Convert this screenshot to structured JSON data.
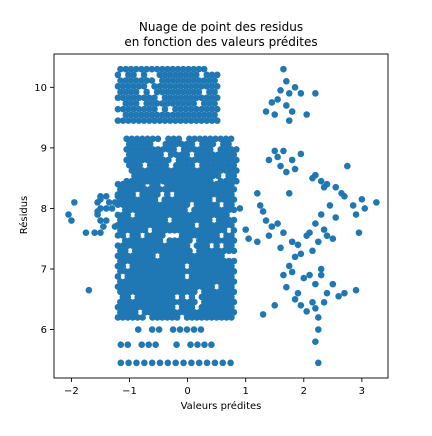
{
  "chart_data": {
    "type": "scatter",
    "title_lines": [
      "Nuage de point des residus",
      "en fonction des valeurs prédites"
    ],
    "xlabel": "Valeurs prédites",
    "ylabel": "Résidus",
    "xlim": [
      -2.3,
      3.45
    ],
    "ylim": [
      5.2,
      10.55
    ],
    "xticks": [
      -2,
      -1,
      0,
      1,
      2,
      3
    ],
    "yticks": [
      6,
      7,
      8,
      9,
      10
    ],
    "grid": false,
    "marker_color": "#1f77b4",
    "spine_color": "#000000",
    "background": "#ffffff",
    "clusters": [
      {
        "y_min": 9.45,
        "y_max": 10.3,
        "levels": 10,
        "x_min": -1.2,
        "x_max": 0.55,
        "x_step": 0.09,
        "gaps": 0.13
      },
      {
        "y_min": 8.45,
        "y_max": 9.15,
        "levels": 9,
        "x_min": -1.05,
        "x_max": 0.85,
        "x_step": 0.09,
        "gaps": 0.1
      },
      {
        "y_min": 6.2,
        "y_max": 8.4,
        "levels": 27,
        "x_min": -1.2,
        "x_max": 0.8,
        "x_step": 0.085,
        "gaps": 0.07
      },
      {
        "y_min": 7.6,
        "y_max": 8.3,
        "levels": 8,
        "x_min": -1.6,
        "x_max": -1.2,
        "x_step": 0.1,
        "gaps": 0.4
      },
      {
        "y_min": 5.75,
        "y_max": 6.0,
        "levels": 2,
        "x_min": -1.15,
        "x_max": 0.75,
        "x_step": 0.12,
        "gaps": 0.45
      },
      {
        "y_min": 5.45,
        "y_max": 5.45,
        "levels": 1,
        "x_min": -1.15,
        "x_max": 0.8,
        "x_step": 0.135,
        "gaps": 0.0
      }
    ],
    "points": [
      [
        -2.05,
        7.9
      ],
      [
        -2.0,
        7.8
      ],
      [
        -1.95,
        8.1
      ],
      [
        -1.75,
        7.6
      ],
      [
        -1.7,
        6.65
      ],
      [
        -1.55,
        7.95
      ],
      [
        -1.5,
        8.15
      ],
      [
        1.35,
        9.6
      ],
      [
        1.45,
        9.75
      ],
      [
        1.5,
        9.55
      ],
      [
        1.55,
        9.8
      ],
      [
        1.6,
        9.95
      ],
      [
        1.65,
        10.3
      ],
      [
        1.7,
        9.7
      ],
      [
        1.75,
        9.9
      ],
      [
        1.75,
        9.45
      ],
      [
        1.8,
        9.6
      ],
      [
        1.85,
        10.0
      ],
      [
        1.7,
        10.1
      ],
      [
        1.95,
        9.9
      ],
      [
        2.05,
        9.55
      ],
      [
        2.2,
        9.9
      ],
      [
        1.5,
        8.95
      ],
      [
        1.4,
        8.8
      ],
      [
        1.55,
        8.85
      ],
      [
        1.6,
        8.7
      ],
      [
        1.65,
        8.95
      ],
      [
        1.8,
        8.8
      ],
      [
        1.85,
        8.65
      ],
      [
        1.95,
        8.9
      ],
      [
        1.7,
        8.6
      ],
      [
        1.75,
        8.25
      ],
      [
        2.15,
        8.5
      ],
      [
        2.2,
        8.55
      ],
      [
        2.3,
        8.45
      ],
      [
        2.35,
        8.35
      ],
      [
        2.4,
        8.4
      ],
      [
        2.55,
        8.35
      ],
      [
        2.65,
        8.25
      ],
      [
        2.75,
        8.7
      ],
      [
        2.7,
        8.2
      ],
      [
        2.85,
        8.05
      ],
      [
        2.9,
        7.9
      ],
      [
        3.0,
        8.15
      ],
      [
        3.05,
        8.0
      ],
      [
        3.25,
        8.1
      ],
      [
        2.95,
        7.6
      ],
      [
        1.2,
        8.25
      ],
      [
        1.25,
        8.05
      ],
      [
        1.3,
        7.95
      ],
      [
        1.35,
        7.8
      ],
      [
        1.4,
        7.55
      ],
      [
        1.45,
        7.7
      ],
      [
        1.2,
        7.45
      ],
      [
        1.05,
        7.5
      ],
      [
        1.0,
        7.65
      ],
      [
        0.9,
        8.0
      ],
      [
        1.55,
        7.75
      ],
      [
        1.6,
        7.35
      ],
      [
        1.65,
        7.6
      ],
      [
        1.75,
        7.05
      ],
      [
        1.8,
        7.45
      ],
      [
        1.85,
        7.2
      ],
      [
        1.9,
        7.4
      ],
      [
        1.95,
        7.25
      ],
      [
        2.05,
        7.55
      ],
      [
        2.1,
        7.6
      ],
      [
        2.15,
        7.3
      ],
      [
        2.2,
        7.75
      ],
      [
        2.25,
        7.45
      ],
      [
        2.3,
        7.9
      ],
      [
        2.35,
        7.65
      ],
      [
        2.4,
        7.55
      ],
      [
        2.45,
        8.05
      ],
      [
        2.5,
        7.5
      ],
      [
        2.55,
        7.85
      ],
      [
        2.3,
        7.0
      ],
      [
        1.65,
        6.9
      ],
      [
        1.7,
        6.7
      ],
      [
        1.8,
        6.95
      ],
      [
        1.9,
        6.6
      ],
      [
        2.0,
        6.85
      ],
      [
        2.1,
        6.9
      ],
      [
        2.2,
        6.75
      ],
      [
        2.3,
        6.9
      ],
      [
        2.4,
        6.6
      ],
      [
        2.5,
        6.75
      ],
      [
        2.6,
        6.55
      ],
      [
        2.7,
        6.6
      ],
      [
        1.85,
        6.5
      ],
      [
        1.95,
        6.4
      ],
      [
        2.05,
        6.3
      ],
      [
        2.15,
        6.45
      ],
      [
        2.2,
        6.35
      ],
      [
        2.35,
        6.45
      ],
      [
        2.9,
        6.65
      ],
      [
        2.25,
        6.2
      ],
      [
        1.3,
        6.25
      ],
      [
        1.5,
        6.4
      ],
      [
        2.25,
        6.0
      ],
      [
        2.2,
        5.8
      ],
      [
        2.25,
        5.45
      ]
    ]
  }
}
